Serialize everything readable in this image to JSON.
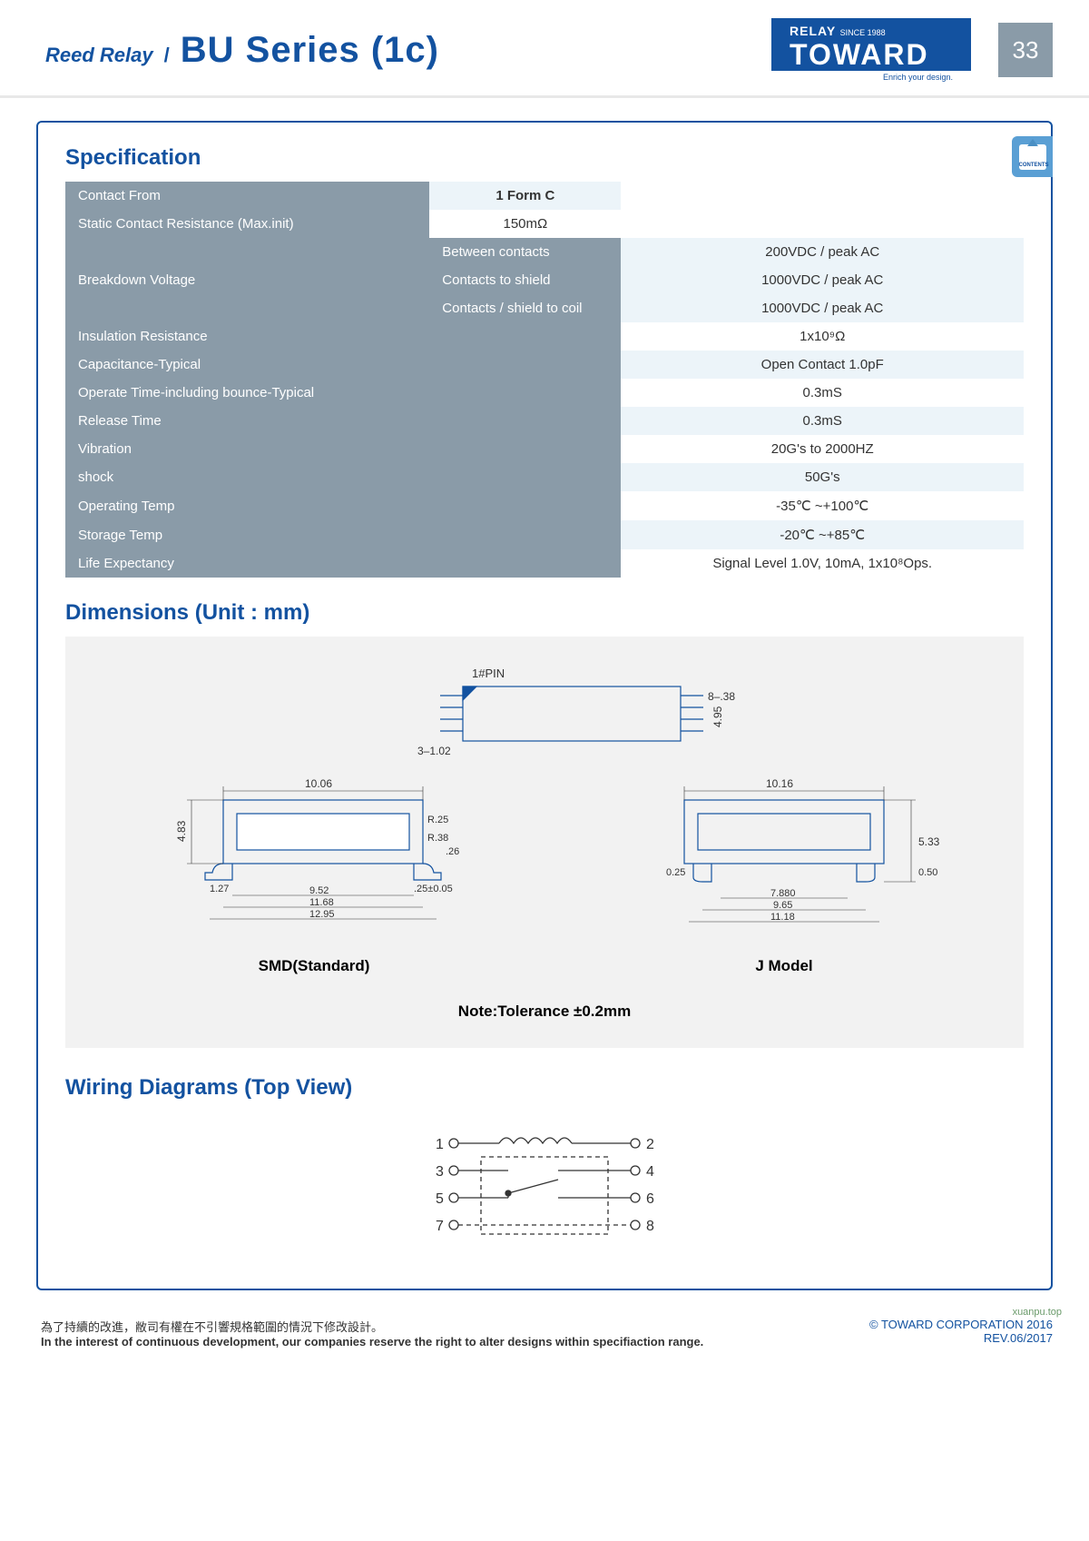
{
  "header": {
    "reed": "Reed Relay",
    "slash": "/",
    "series": "BU Series (1c)",
    "logo_top": "RELAY",
    "logo_since": "SINCE 1988",
    "logo_main": "TOWARD",
    "logo_sub": "Enrich your design.",
    "pagenum": "33",
    "tab_text": "CONTENTS"
  },
  "spec": {
    "title": "Specification",
    "rows": [
      {
        "label": "Contact From",
        "value": "1 Form C",
        "cls": "r-light"
      },
      {
        "label": "Static Contact Resistance (Max.init)",
        "value": "150mΩ",
        "cls": "r-white"
      }
    ],
    "breakdown": {
      "label": "Breakdown Voltage",
      "subs": [
        {
          "l": "Between contacts",
          "v": "200VDC / peak AC"
        },
        {
          "l": "Contacts to shield",
          "v": "1000VDC / peak AC"
        },
        {
          "l": "Contacts / shield to coil",
          "v": "1000VDC / peak AC"
        }
      ]
    },
    "rows2": [
      {
        "label": "Insulation Resistance",
        "value_html": "1x10⁹Ω",
        "cls": "r-white"
      },
      {
        "label": "Capacitance-Typical",
        "value_html": "Open Contact 1.0pF",
        "cls": "r-light"
      },
      {
        "label": "Operate Time-including bounce-Typical",
        "value_html": "0.3mS",
        "cls": "r-white"
      },
      {
        "label": "Release Time",
        "value_html": "0.3mS",
        "cls": "r-light"
      },
      {
        "label": "Vibration",
        "value_html": "20G's to 2000HZ",
        "cls": "r-white"
      },
      {
        "label": "shock",
        "value_html": "50G's",
        "cls": "r-light"
      },
      {
        "label": "Operating Temp",
        "value_html": "-35℃ ~+100℃",
        "cls": "r-white"
      },
      {
        "label": "Storage Temp",
        "value_html": "-20℃ ~+85℃",
        "cls": "r-light"
      },
      {
        "label": "Life Expectancy",
        "value_html": "Signal Level 1.0V, 10mA, 1x10⁸Ops.",
        "cls": "r-white",
        "last": true
      }
    ]
  },
  "dims": {
    "title": "Dimensions (Unit : mm)",
    "top_label": "1#PIN",
    "top_dims": {
      "pin_pitch": "3–1.02",
      "right1": "8–.38",
      "right2": "4.95"
    },
    "left": {
      "label": "SMD(Standard)",
      "w": "10.06",
      "h": "4.83",
      "r1": "R.25",
      "r2": "R.38",
      "d26": ".26",
      "b1": "1.27",
      "b2": "9.52",
      "b3": "11.68",
      "b4": "12.95",
      "tol": ".25±0.05"
    },
    "right": {
      "label": "J Model",
      "w": "10.16",
      "h": "5.33",
      "lpad": "0.25",
      "rpad": "0.50",
      "b1": "7.880",
      "b2": "9.65",
      "b3": "11.18"
    },
    "note": "Note:Tolerance ±0.2mm"
  },
  "wiring": {
    "title": "Wiring Diagrams (Top View)",
    "pins": [
      "1",
      "2",
      "3",
      "4",
      "5",
      "6",
      "7",
      "8"
    ]
  },
  "footer": {
    "cn": "為了持續的改進，敝司有權在不引響規格範圍的情況下修改設計。",
    "en": "In the interest of continuous development, our companies reserve the right to alter designs within specifiaction range.",
    "copy": "© TOWARD CORPORATION 2016",
    "rev": "REV.06/2017",
    "wm": "xuanpu.top"
  },
  "colors": {
    "brand": "#1352a0",
    "hdr": "#8a9ba8",
    "light": "#ecf4f9",
    "dimbg": "#f2f2f2",
    "line": "#1352a0",
    "thinline": "#333"
  }
}
